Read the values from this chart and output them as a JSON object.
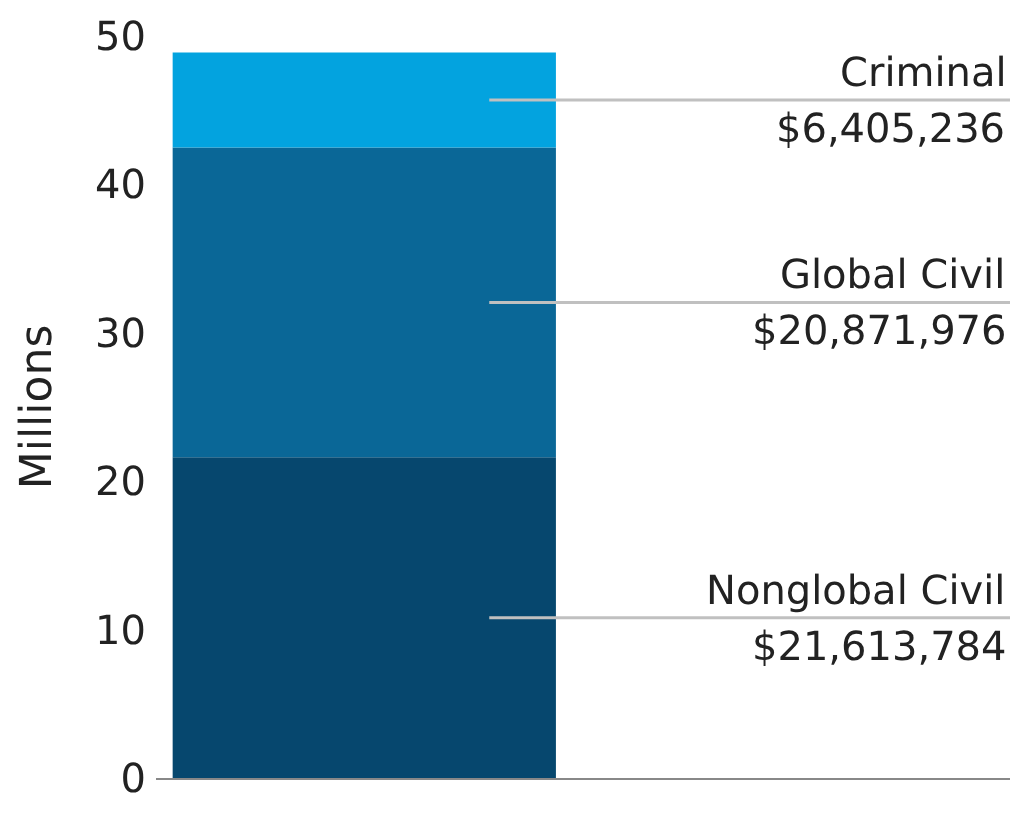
{
  "chart_data": {
    "type": "bar",
    "stacked": true,
    "ylabel": "Millions",
    "categories": [
      null
    ],
    "ylim": [
      0,
      50
    ],
    "yticks": [
      0,
      10,
      20,
      30,
      40,
      50
    ],
    "series": [
      {
        "name": "Nonglobal Civil",
        "color": "#06476e",
        "values": [
          21.61
        ]
      },
      {
        "name": "Global Civil",
        "color": "#0a6797",
        "values": [
          20.87
        ]
      },
      {
        "name": "Criminal",
        "color": "#03a3df",
        "values": [
          6.41
        ]
      }
    ],
    "annotations": [
      "$21,613,784",
      "$20,871,976",
      "$6,405,236"
    ]
  }
}
